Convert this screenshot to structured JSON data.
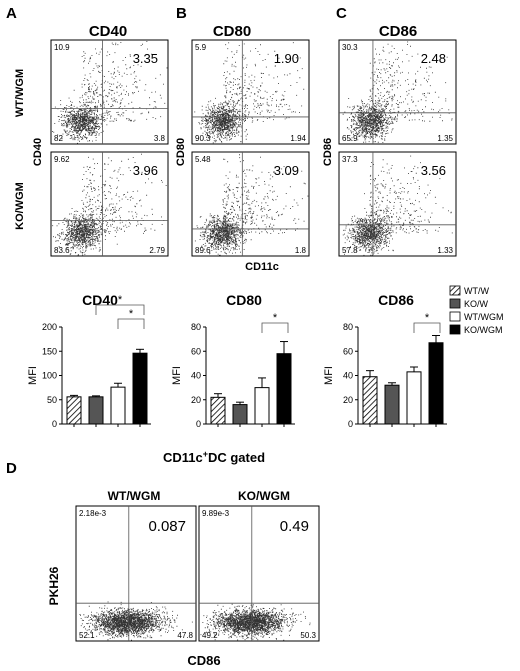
{
  "panel_letters": {
    "a": "A",
    "b": "B",
    "c": "C",
    "d": "D"
  },
  "flow_top": {
    "panel_titles": [
      "CD40",
      "CD80",
      "CD86"
    ],
    "row_labels": [
      "WT/WGM",
      "KO/WGM"
    ],
    "y_axis_labels": [
      "CD40",
      "CD80",
      "CD86"
    ],
    "x_axis_label": "CD11c",
    "plots": [
      {
        "panel": 0,
        "row": 0,
        "main": "3.35",
        "ul": "10.9",
        "ll": "82",
        "lr": "3.8"
      },
      {
        "panel": 0,
        "row": 1,
        "main": "3.96",
        "ul": "9.62",
        "ll": "83.6",
        "lr": "2.79"
      },
      {
        "panel": 1,
        "row": 0,
        "main": "1.90",
        "ul": "5.9",
        "ll": "90.3",
        "lr": "1.94"
      },
      {
        "panel": 1,
        "row": 1,
        "main": "3.09",
        "ul": "5.48",
        "ll": "89.6",
        "lr": "1.8"
      },
      {
        "panel": 2,
        "row": 0,
        "main": "2.48",
        "ul": "30.3",
        "ll": "65.9",
        "lr": "1.35"
      },
      {
        "panel": 2,
        "row": 1,
        "main": "3.56",
        "ul": "37.3",
        "ll": "57.8",
        "lr": "1.33"
      }
    ]
  },
  "chart_data": [
    {
      "type": "bar",
      "title": "CD40",
      "ylabel": "MFI",
      "ylim": [
        0,
        200
      ],
      "yticks": [
        "0",
        "50",
        "100",
        "150",
        "200"
      ],
      "categories": [
        "WT/W",
        "KO/W",
        "WT/WGM",
        "KO/WGM"
      ],
      "values": [
        56,
        56,
        76,
        146
      ],
      "errors": [
        3,
        2,
        8,
        8
      ],
      "significance": [
        {
          "from": 2,
          "to": 3,
          "label": "*"
        },
        {
          "from": 1,
          "to": 3,
          "label": "*"
        }
      ]
    },
    {
      "type": "bar",
      "title": "CD80",
      "ylabel": "MFI",
      "ylim": [
        0,
        80
      ],
      "yticks": [
        "0",
        "20",
        "40",
        "60",
        "80"
      ],
      "categories": [
        "WT/W",
        "KO/W",
        "WT/WGM",
        "KO/WGM"
      ],
      "values": [
        22,
        16,
        30,
        58
      ],
      "errors": [
        3,
        2,
        8,
        10
      ],
      "significance": [
        {
          "from": 2,
          "to": 3,
          "label": "*"
        }
      ]
    },
    {
      "type": "bar",
      "title": "CD86",
      "ylabel": "MFI",
      "ylim": [
        0,
        80
      ],
      "yticks": [
        "0",
        "20",
        "40",
        "60",
        "80"
      ],
      "categories": [
        "WT/W",
        "KO/W",
        "WT/WGM",
        "KO/WGM"
      ],
      "values": [
        39,
        32,
        43,
        67
      ],
      "errors": [
        5,
        2,
        4,
        6
      ],
      "significance": [
        {
          "from": 2,
          "to": 3,
          "label": "*"
        }
      ]
    }
  ],
  "legend": [
    {
      "label": "WT/W",
      "fill": "hatch"
    },
    {
      "label": "KO/W",
      "fill": "#555555"
    },
    {
      "label": "WT/WGM",
      "fill": "#ffffff"
    },
    {
      "label": "KO/WGM",
      "fill": "#000000"
    }
  ],
  "bar_footer": {
    "prefix": "CD11c",
    "sup": "+",
    "suffix": "DC gated"
  },
  "flow_bottom": {
    "y_axis_label": "PKH26",
    "x_axis_label": "CD86",
    "plots": [
      {
        "title": "WT/WGM",
        "main": "0.087",
        "ul": "2.18e-3",
        "ll": "52.1",
        "lr": "47.8"
      },
      {
        "title": "KO/WGM",
        "main": "0.49",
        "ul": "9.89e-3",
        "ll": "49.2",
        "lr": "50.3"
      }
    ]
  }
}
